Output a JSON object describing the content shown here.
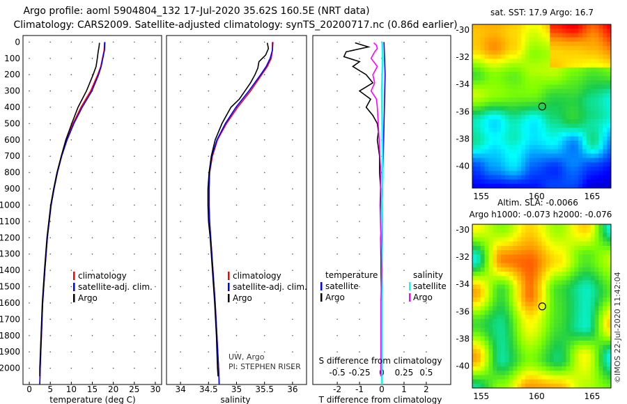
{
  "title_line1": "Argo profile: aoml 5904804_132 17-Jul-2020 35.62S 160.5E (NRT data)",
  "title_line2": "Climatology: CARS2009. Satellite-adjusted climatology: synTS_20200717.nc (0.86d earlier)",
  "map1_title": "sat. SST: 17.9 Argo: 16.7",
  "map2_title_line1": "Altim. SLA: -0.0066",
  "map2_title_line2": "Argo h1000: -0.073 h2000: -0.076",
  "credit": "©IMOS 22-Jul-2020 11:42:04",
  "pi_line1": "UW, Argo",
  "pi_line2": "PI: STEPHEN RISER",
  "legend_ts": {
    "clim": "climatology",
    "sat": "satellite-adj. clim.",
    "argo": "Argo"
  },
  "legend_diff": {
    "temperature": "temperature",
    "salinity": "salinity",
    "t_sat": "satellite",
    "t_argo": "Argo",
    "s_sat": "satellite",
    "s_argo": "Argo"
  },
  "colors": {
    "clim": "#ff0000",
    "sat": "#0000ff",
    "argo": "#000000",
    "s_sat": "#00ffff",
    "s_argo": "#ff00ff"
  },
  "chart_data": [
    {
      "type": "line",
      "name": "temperature",
      "xlabel": "temperature (deg C)",
      "ylabel": "",
      "xlim": [
        -1.5,
        31.5
      ],
      "ylim": [
        2100,
        -40
      ],
      "x_ticks": [
        0,
        5,
        10,
        15,
        20,
        25,
        30
      ],
      "y_ticks": [
        0,
        100,
        200,
        300,
        400,
        500,
        600,
        700,
        800,
        900,
        1000,
        1100,
        1200,
        1300,
        1400,
        1500,
        1600,
        1700,
        1800,
        1900,
        2000
      ],
      "series": [
        {
          "name": "climatology",
          "depth": [
            0,
            50,
            100,
            150,
            200,
            300,
            400,
            500,
            600,
            700,
            800,
            900,
            1000,
            1200,
            1400,
            1600,
            1800,
            2000,
            2100
          ],
          "values": [
            17.9,
            17.8,
            17.4,
            17.0,
            16.3,
            14.6,
            12.3,
            10.4,
            8.9,
            7.7,
            6.7,
            5.9,
            5.2,
            4.3,
            3.7,
            3.2,
            2.9,
            2.6,
            2.5
          ]
        },
        {
          "name": "satellite-adj. clim.",
          "depth": [
            0,
            50,
            100,
            150,
            200,
            300,
            400,
            500,
            600,
            700,
            800,
            900,
            1000,
            1200,
            1400,
            1600,
            1800,
            2000,
            2100
          ],
          "values": [
            18.0,
            17.9,
            17.5,
            17.1,
            16.5,
            14.9,
            12.6,
            10.6,
            9.0,
            7.7,
            6.7,
            5.9,
            5.2,
            4.3,
            3.7,
            3.2,
            2.9,
            2.6,
            2.5
          ]
        },
        {
          "name": "Argo",
          "depth": [
            5,
            30,
            60,
            100,
            150,
            200,
            300,
            400,
            500,
            600,
            700,
            800,
            900,
            1000,
            1200,
            1400,
            1600,
            1800,
            2000,
            2050
          ],
          "values": [
            16.7,
            16.6,
            16.4,
            16.2,
            15.9,
            15.2,
            13.6,
            11.6,
            10.1,
            8.7,
            7.6,
            6.6,
            5.8,
            5.1,
            4.2,
            3.6,
            3.1,
            2.8,
            2.5,
            2.5
          ]
        }
      ]
    },
    {
      "type": "line",
      "name": "salinity",
      "xlabel": "salinity",
      "ylabel": "",
      "xlim": [
        33.75,
        36.25
      ],
      "ylim": [
        2100,
        -40
      ],
      "x_ticks": [
        34,
        34.5,
        35,
        35.5,
        36
      ],
      "x_tick_labels": [
        "34",
        "34.5",
        "35",
        "35.5",
        "36"
      ],
      "series": [
        {
          "name": "climatology",
          "depth": [
            0,
            50,
            100,
            150,
            200,
            300,
            400,
            500,
            600,
            700,
            800,
            900,
            1000,
            1100,
            1200,
            1400,
            1600,
            1800,
            2000,
            2100
          ],
          "values": [
            35.64,
            35.64,
            35.62,
            35.55,
            35.45,
            35.25,
            35.02,
            34.82,
            34.66,
            34.57,
            34.52,
            34.51,
            34.51,
            34.52,
            34.54,
            34.58,
            34.62,
            34.65,
            34.68,
            34.69
          ]
        },
        {
          "name": "satellite-adj. clim.",
          "depth": [
            0,
            50,
            100,
            150,
            200,
            300,
            400,
            500,
            600,
            700,
            800,
            900,
            1000,
            1100,
            1200,
            1400,
            1600,
            1800,
            2000,
            2100
          ],
          "values": [
            35.65,
            35.64,
            35.6,
            35.53,
            35.43,
            35.22,
            34.99,
            34.8,
            34.65,
            34.56,
            34.52,
            34.51,
            34.51,
            34.52,
            34.54,
            34.58,
            34.62,
            34.65,
            34.68,
            34.69
          ]
        },
        {
          "name": "Argo",
          "depth": [
            5,
            40,
            80,
            120,
            160,
            200,
            250,
            300,
            350,
            400,
            450,
            500,
            600,
            700,
            800,
            900,
            1000,
            1100,
            1200,
            1400,
            1600,
            1800,
            2000,
            2050
          ],
          "values": [
            35.55,
            35.57,
            35.52,
            35.4,
            35.38,
            35.33,
            35.25,
            35.15,
            35.05,
            34.9,
            34.82,
            34.74,
            34.62,
            34.55,
            34.51,
            34.49,
            34.49,
            34.5,
            34.53,
            34.57,
            34.61,
            34.64,
            34.66,
            34.67
          ]
        }
      ]
    },
    {
      "type": "line",
      "name": "difference",
      "xlabel": "T difference from climatology",
      "xlabel_top": "S difference from climatology",
      "xlim": [
        -3.1,
        3.1
      ],
      "ylim": [
        2100,
        -40
      ],
      "x_ticks": [
        -2,
        -1,
        0,
        1,
        2
      ],
      "x_ticks_s": [
        -0.5,
        -0.25,
        0,
        0.25,
        0.5
      ],
      "x_tick_labels_s": [
        "-0.5",
        "-0.25",
        "0",
        "0.25",
        "0.5"
      ],
      "s_scale": 4,
      "series": [
        {
          "name": "T satellite",
          "depth": [
            0,
            200,
            500,
            1000,
            1500,
            2000,
            2100
          ],
          "values": [
            0.1,
            0.15,
            0.1,
            0.02,
            0.01,
            0.0,
            0.0
          ]
        },
        {
          "name": "T Argo",
          "depth": [
            5,
            30,
            60,
            90,
            120,
            150,
            200,
            250,
            300,
            350,
            400,
            450,
            500,
            550,
            600,
            700,
            800,
            900,
            1000,
            1100,
            1200,
            1400,
            1600,
            1800,
            2000,
            2050
          ],
          "values": [
            -1.2,
            -0.6,
            -1.6,
            -1.7,
            -1.0,
            -1.3,
            -0.7,
            -0.4,
            -1.0,
            -0.5,
            -0.7,
            -0.4,
            -0.2,
            -0.15,
            -0.2,
            -0.1,
            -0.1,
            -0.05,
            -0.05,
            0.0,
            -0.05,
            -0.03,
            -0.02,
            -0.03,
            -0.02,
            -0.02
          ]
        },
        {
          "name": "S satellite",
          "depth": [
            0,
            100,
            300,
            500,
            800,
            1000,
            1200,
            1500,
            1800,
            2000,
            2100
          ],
          "values": [
            0.005,
            0.01,
            0.0,
            0.005,
            0.01,
            0.0,
            -0.005,
            0.005,
            0.0,
            0.0,
            0.0
          ]
        },
        {
          "name": "S Argo",
          "depth": [
            5,
            20,
            40,
            60,
            80,
            100,
            150,
            200,
            250,
            300,
            350,
            400,
            500,
            600,
            700,
            800,
            1000,
            1200,
            1400,
            1600,
            1800,
            2000,
            2050
          ],
          "values": [
            -0.09,
            -0.06,
            -0.05,
            -0.08,
            -0.1,
            -0.12,
            -0.05,
            -0.1,
            -0.08,
            -0.12,
            -0.06,
            -0.05,
            -0.04,
            -0.03,
            -0.02,
            -0.01,
            -0.02,
            -0.01,
            0.0,
            -0.01,
            -0.01,
            -0.01,
            -0.01
          ]
        }
      ]
    },
    {
      "type": "heatmap",
      "name": "sst_map",
      "title": "sat. SST: 17.9 Argo: 16.7",
      "xlim": [
        154.2,
        166.7
      ],
      "ylim": [
        -41.6,
        -29.6
      ],
      "x_ticks": [
        155,
        160,
        165
      ],
      "y_ticks": [
        -30,
        -32,
        -34,
        -36,
        -38,
        -40
      ],
      "marker": {
        "lon": 160.5,
        "lat": -35.62
      }
    },
    {
      "type": "heatmap",
      "name": "sla_map",
      "title": "Altim. SLA: -0.0066",
      "xlim": [
        154.2,
        166.7
      ],
      "ylim": [
        -41.6,
        -29.6
      ],
      "x_ticks": [
        155,
        160,
        165
      ],
      "y_ticks": [
        -30,
        -32,
        -34,
        -36,
        -38,
        -40
      ],
      "marker": {
        "lon": 160.5,
        "lat": -35.62
      }
    }
  ]
}
